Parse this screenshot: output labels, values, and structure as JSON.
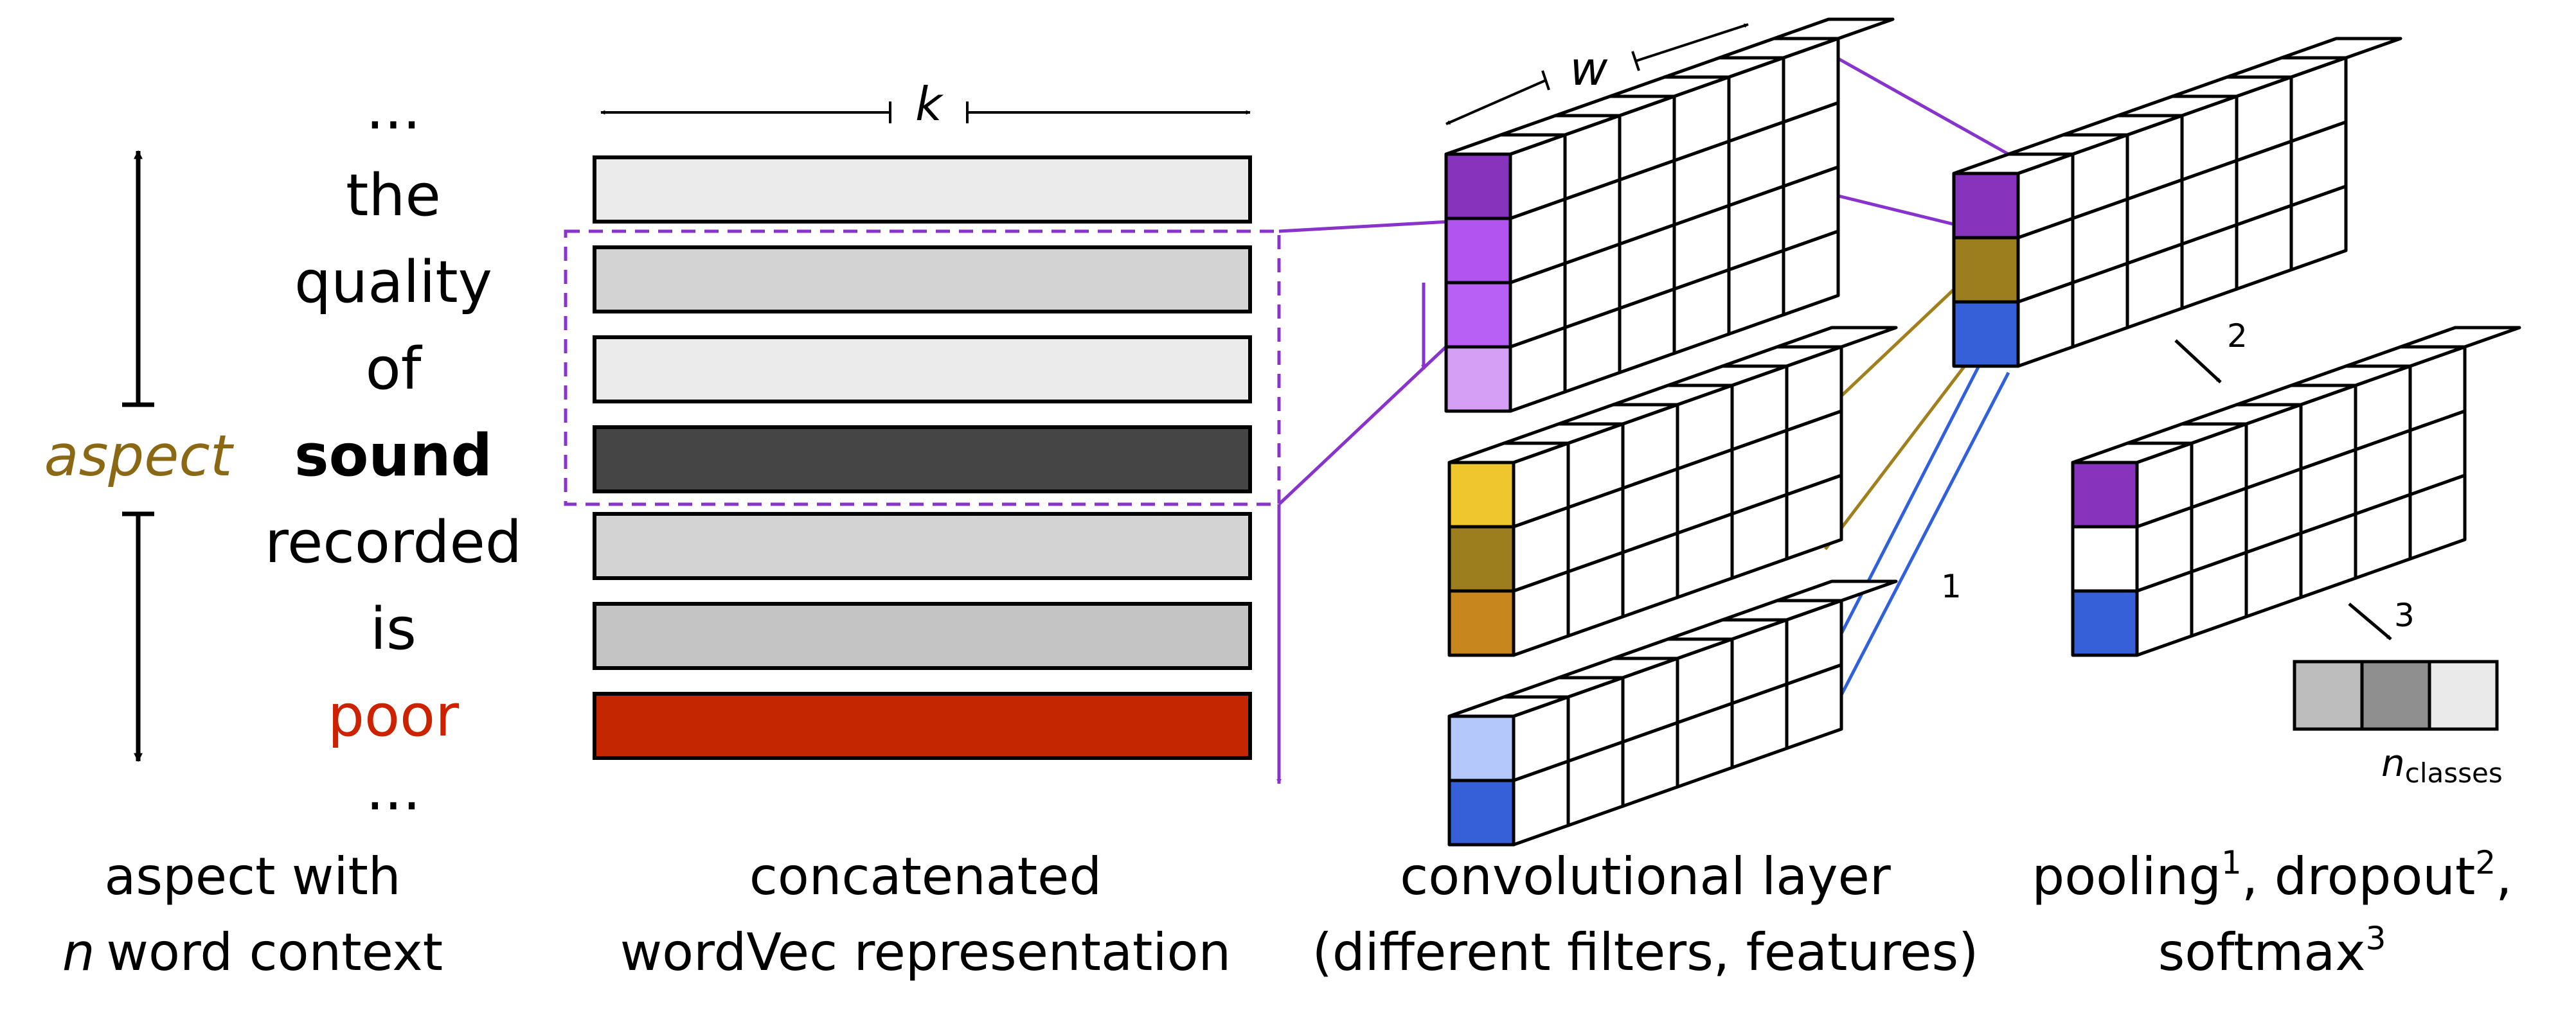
{
  "labels": {
    "ellipsis": "...",
    "words": [
      "the",
      "quality",
      "of",
      "sound",
      "recorded",
      "is",
      "poor"
    ],
    "aspect": "aspect",
    "k": "k",
    "w": "w",
    "one": "1",
    "two": "2",
    "three": "3",
    "n_italic": "n",
    "classes": "classes"
  },
  "captions": {
    "col1": [
      "aspect with",
      "word context"
    ],
    "col1_n": "n",
    "col2": [
      "concatenated",
      "wordVec representation"
    ],
    "col3": [
      "convolutional layer",
      "(different filters, features)"
    ],
    "col4": {
      "pooling": "pooling",
      "sup1": "1",
      "dropout": ", dropout",
      "sup2": "2",
      "comma": ",",
      "softmax": "softmax",
      "sup3": "3"
    }
  },
  "colors": {
    "aspect_label": "#8B6914",
    "sentiment_word": "#CC2200",
    "purple": "#8833CC",
    "gold": "#A07F1C",
    "blue": "#3060DD",
    "bar_light": "#EBEBEB",
    "bar_mid": "#D3D3D3",
    "bar_dark": "#454545",
    "bar_red": "#C32600"
  }
}
